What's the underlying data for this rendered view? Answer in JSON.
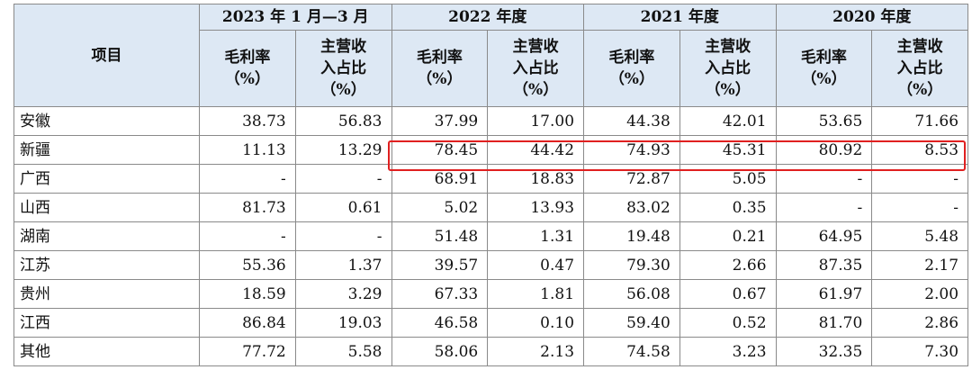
{
  "table": {
    "item_header": "项目",
    "periods": [
      "2023 年 1 月—3 月",
      "2022 年度",
      "2021 年度",
      "2020 年度"
    ],
    "metric_headers": [
      "毛利率（%）",
      "主营收入占比（%）"
    ],
    "metric_gross_lines": [
      "毛利率",
      "（%）"
    ],
    "metric_share_lines": [
      "主营收",
      "入占比",
      "（%）"
    ],
    "rows": [
      {
        "region": "安徽",
        "values": [
          "38.73",
          "56.83",
          "37.99",
          "17.00",
          "44.38",
          "42.01",
          "53.65",
          "71.66"
        ]
      },
      {
        "region": "新疆",
        "values": [
          "11.13",
          "13.29",
          "78.45",
          "44.42",
          "74.93",
          "45.31",
          "80.92",
          "8.53"
        ]
      },
      {
        "region": "广西",
        "values": [
          "-",
          "-",
          "68.91",
          "18.83",
          "72.87",
          "5.05",
          "-",
          "-"
        ]
      },
      {
        "region": "山西",
        "values": [
          "81.73",
          "0.61",
          "5.02",
          "13.93",
          "83.02",
          "0.35",
          "-",
          "-"
        ]
      },
      {
        "region": "湖南",
        "values": [
          "-",
          "-",
          "51.48",
          "1.31",
          "19.48",
          "0.21",
          "64.95",
          "5.48"
        ]
      },
      {
        "region": "江苏",
        "values": [
          "55.36",
          "1.37",
          "39.57",
          "0.47",
          "79.30",
          "2.66",
          "87.35",
          "2.17"
        ]
      },
      {
        "region": "贵州",
        "values": [
          "18.59",
          "3.29",
          "67.33",
          "1.81",
          "56.08",
          "0.67",
          "61.97",
          "2.00"
        ]
      },
      {
        "region": "江西",
        "values": [
          "86.84",
          "19.03",
          "46.58",
          "0.10",
          "59.40",
          "0.52",
          "81.70",
          "2.86"
        ]
      },
      {
        "region": "其他",
        "values": [
          "77.72",
          "5.58",
          "58.06",
          "2.13",
          "74.58",
          "3.23",
          "32.35",
          "7.30"
        ]
      }
    ]
  },
  "highlight": {
    "color": "#e02020"
  },
  "colors": {
    "header_bg": "#dde8f4",
    "border": "#8a8a8a"
  }
}
